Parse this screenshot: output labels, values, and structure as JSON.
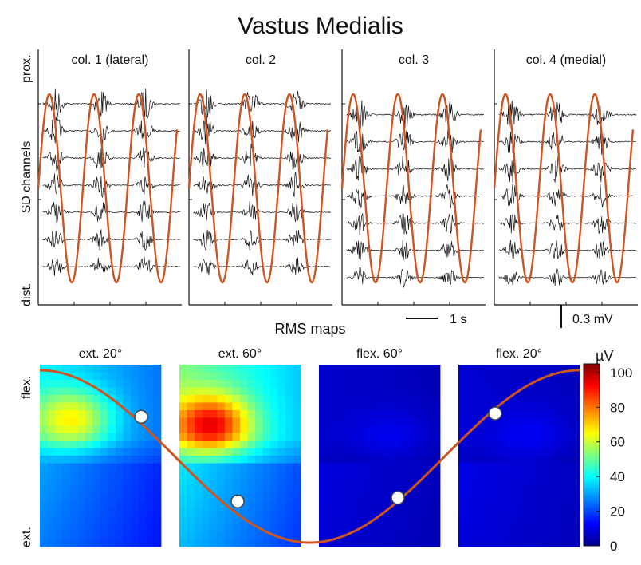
{
  "chart_data": {
    "title": "Vastus Medialis",
    "emg_panel": {
      "type": "line",
      "ylabel": "SD channels",
      "y_top_label": "prox.",
      "y_bottom_label": "dist.",
      "columns": [
        "col. 1 (lateral)",
        "col. 2",
        "col. 3",
        "col. 4 (medial)"
      ],
      "channels_per_column": 7,
      "column_top_channel_offset": [
        0,
        0,
        0.4,
        0.4
      ],
      "cycles_per_column": 3,
      "time_scalebar_label": "1 s",
      "amplitude_scalebar_label": "0.3 mV",
      "trace_color": "#111111",
      "angle_curve_color": "#cc5522"
    },
    "rms_maps": {
      "type": "heatmap",
      "section_label": "RMS maps",
      "ylabel_top": "flex.",
      "ylabel_bottom": "ext.",
      "maps": [
        {
          "label": "ext. 20°",
          "peak_uV": 70,
          "upper_uV": 55,
          "lower_uV": 30,
          "curve_marker_level": 0.73
        },
        {
          "label": "ext. 60°",
          "peak_uV": 100,
          "upper_uV": 75,
          "lower_uV": 38,
          "curve_marker_level": 0.24
        },
        {
          "label": "flex. 60°",
          "peak_uV": 12,
          "upper_uV": 10,
          "lower_uV": 9,
          "curve_marker_level": 0.26
        },
        {
          "label": "flex. 20°",
          "peak_uV": 13,
          "upper_uV": 11,
          "lower_uV": 10,
          "curve_marker_level": 0.75
        }
      ],
      "colorbar": {
        "unit": "µV",
        "ticks": [
          0,
          20,
          40,
          60,
          80,
          100
        ],
        "range": [
          0,
          105
        ],
        "tick_labels": [
          "0",
          "20",
          "40",
          "60",
          "80",
          "100"
        ]
      },
      "colormap": [
        "#00008f",
        "#0000ff",
        "#00ffff",
        "#ffff00",
        "#ff0000",
        "#800000"
      ],
      "curve_color": "#cc5522"
    }
  }
}
